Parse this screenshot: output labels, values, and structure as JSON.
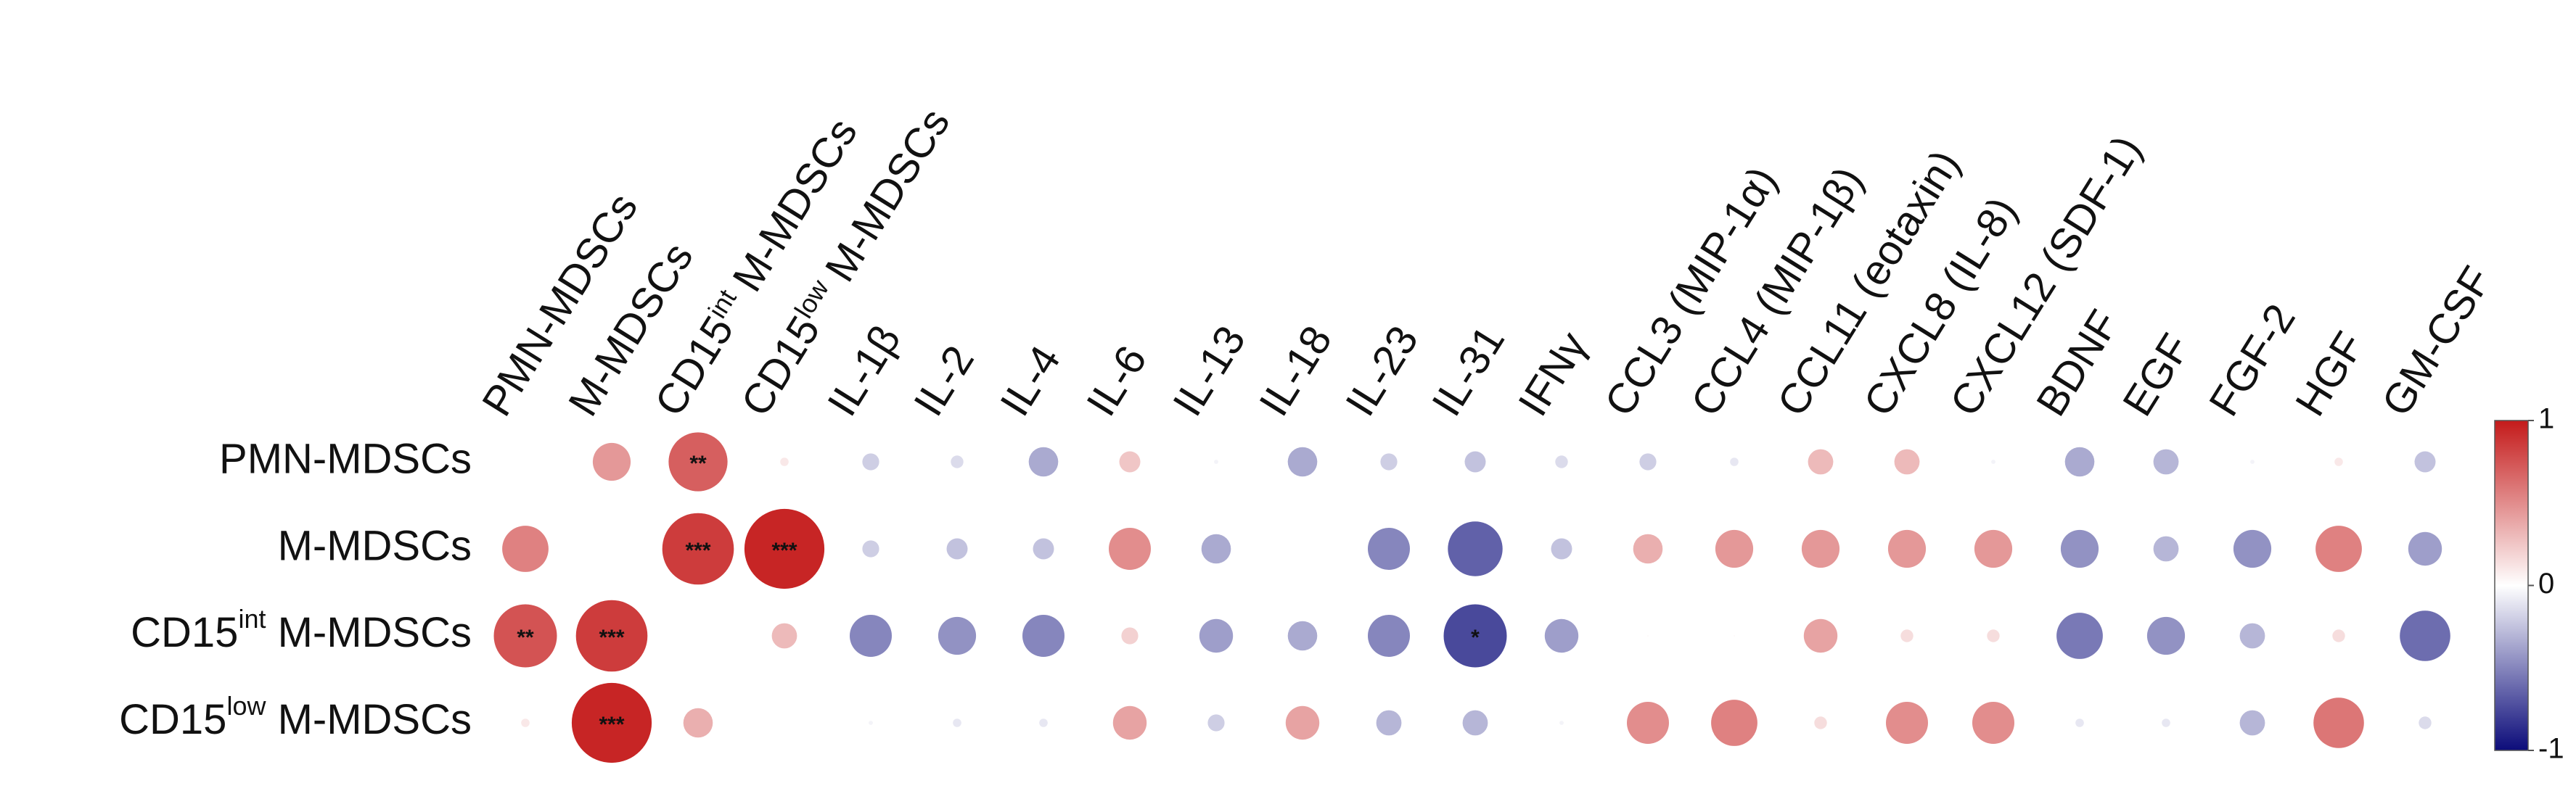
{
  "chart_data": {
    "type": "corrplot",
    "rows": [
      "PMN-MDSCs",
      "M-MDSCs",
      {
        "text": "CD15",
        "sup": "int",
        "after": " M-MDSCs"
      },
      {
        "text": "CD15",
        "sup": "low",
        "after": " M-MDSCs"
      }
    ],
    "columns": [
      "PMN-MDSCs",
      "M-MDSCs",
      {
        "text": "CD15",
        "sup": "int",
        "after": " M-MDSCs"
      },
      {
        "text": "CD15",
        "sup": "low",
        "after": " M-MDSCs"
      },
      "IL-1β",
      "IL-2",
      "IL-4",
      "IL-6",
      "IL-13",
      "IL-18",
      "IL-23",
      "IL-31",
      "IFNγ",
      "CCL3 (MIP-1α)",
      "CCL4 (MIP-1β)",
      "CCL11 (eotaxin)",
      "CXCL8 (IL-8)",
      "CXCL12 (SDF-1)",
      "BDNF",
      "EGF",
      "FGF-2",
      "HGF",
      "GM-CSF"
    ],
    "values": [
      [
        null,
        0.45,
        0.7,
        0.1,
        -0.2,
        -0.15,
        -0.35,
        0.25,
        -0.05,
        -0.35,
        -0.2,
        -0.25,
        -0.15,
        -0.2,
        -0.1,
        0.3,
        0.3,
        -0.05,
        -0.35,
        -0.3,
        -0.05,
        0.1,
        -0.25
      ],
      [
        0.55,
        null,
        0.85,
        0.95,
        -0.2,
        -0.25,
        -0.25,
        0.5,
        -0.35,
        0.0,
        -0.5,
        -0.65,
        -0.25,
        0.35,
        0.45,
        0.45,
        0.45,
        0.45,
        -0.45,
        -0.3,
        -0.45,
        0.55,
        -0.4
      ],
      [
        0.75,
        0.85,
        null,
        0.3,
        -0.5,
        -0.45,
        -0.5,
        0.2,
        -0.4,
        -0.35,
        -0.5,
        -0.75,
        -0.4,
        0.02,
        0.02,
        0.4,
        0.15,
        0.15,
        -0.55,
        -0.45,
        -0.3,
        0.15,
        -0.6
      ],
      [
        0.1,
        0.95,
        0.35,
        null,
        -0.05,
        -0.1,
        -0.1,
        0.4,
        -0.2,
        0.4,
        -0.3,
        -0.3,
        -0.05,
        0.5,
        0.55,
        0.15,
        0.5,
        0.5,
        -0.1,
        -0.1,
        -0.3,
        0.6,
        -0.15
      ]
    ],
    "stars": [
      [
        null,
        null,
        "**",
        null,
        null,
        null,
        null,
        null,
        null,
        null,
        null,
        null,
        null,
        null,
        null,
        null,
        null,
        null,
        null,
        null,
        null,
        null,
        null
      ],
      [
        null,
        null,
        "***",
        "***",
        null,
        null,
        null,
        null,
        null,
        null,
        null,
        null,
        null,
        null,
        null,
        null,
        null,
        null,
        null,
        null,
        null,
        null,
        null
      ],
      [
        "**",
        "***",
        null,
        null,
        null,
        null,
        null,
        null,
        null,
        null,
        null,
        "*",
        null,
        null,
        null,
        null,
        null,
        null,
        null,
        null,
        null,
        null,
        null
      ],
      [
        null,
        "***",
        null,
        null,
        null,
        null,
        null,
        null,
        null,
        null,
        null,
        null,
        null,
        null,
        null,
        null,
        null,
        null,
        null,
        null,
        null,
        null,
        null
      ]
    ],
    "colors": {
      "low": "#0c0c7a",
      "mid": "#ffffff",
      "high": "#c41a1a"
    },
    "colorbar": {
      "lim": [
        -1,
        1
      ],
      "ticks": [
        1,
        0,
        -1
      ]
    }
  }
}
